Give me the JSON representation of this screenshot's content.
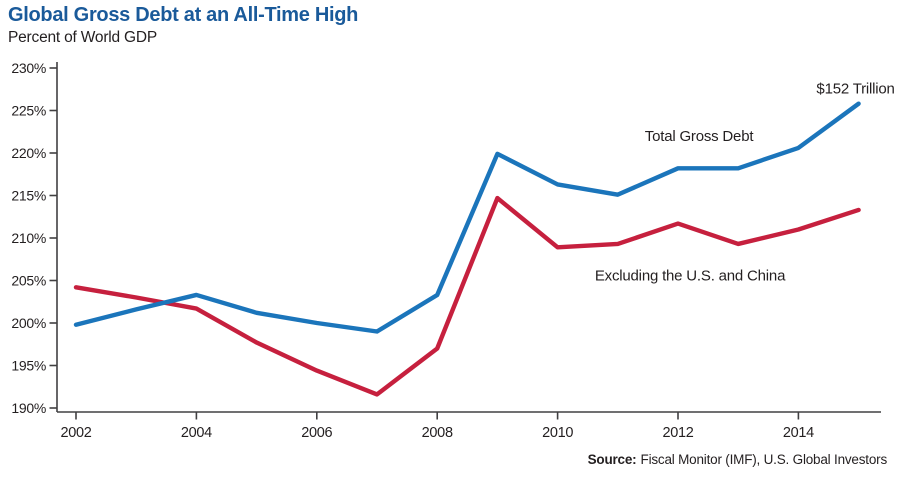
{
  "header": {
    "title": "Global Gross Debt at an All-Time High",
    "subtitle": "Percent of World GDP"
  },
  "source": {
    "label": "Source:",
    "text": "Fiscal Monitor (IMF), U.S. Global Investors"
  },
  "colors": {
    "title": "#1a5a9a",
    "total_gross_debt_line": "#1b75bb",
    "excluding_us_china_line": "#c6203e",
    "axis": "#414042",
    "text": "#231f20"
  },
  "chart_data": {
    "type": "line",
    "title": "Global Gross Debt at an All-Time High",
    "subtitle": "Percent of World GDP",
    "x": [
      2002,
      2003,
      2004,
      2005,
      2006,
      2007,
      2008,
      2009,
      2010,
      2011,
      2012,
      2013,
      2014,
      2015
    ],
    "series": [
      {
        "name": "Total Gross Debt",
        "color": "#1b75bb",
        "values": [
          199.8,
          201.6,
          203.3,
          201.2,
          200.0,
          199.0,
          203.3,
          219.9,
          216.3,
          215.1,
          218.2,
          218.2,
          220.6,
          225.8
        ]
      },
      {
        "name": "Excluding the U.S. and China",
        "color": "#c6203e",
        "values": [
          204.2,
          203.0,
          201.7,
          197.7,
          194.4,
          191.6,
          197.0,
          214.7,
          208.9,
          209.3,
          211.7,
          209.3,
          211.0,
          213.3
        ]
      }
    ],
    "xlabel": "",
    "ylabel": "Percent of World GDP",
    "ylim": [
      190,
      230
    ],
    "xlim": [
      2001.7,
      2015.4
    ],
    "yticks": [
      190,
      195,
      200,
      205,
      210,
      215,
      220,
      225,
      230
    ],
    "yticklabels": [
      "190%",
      "195%",
      "200%",
      "205%",
      "210%",
      "215%",
      "220%",
      "225%",
      "230%"
    ],
    "xticks": [
      2002,
      2004,
      2006,
      2008,
      2010,
      2012,
      2014
    ],
    "xticklabels": [
      "2002",
      "2004",
      "2006",
      "2008",
      "2010",
      "2012",
      "2014"
    ],
    "grid": false,
    "legend": "inline-annotations",
    "annotations": [
      {
        "text": "Total Gross Debt",
        "x": 2012.35,
        "y": 222.0,
        "anchor": "middle",
        "color": "#231f20"
      },
      {
        "text": "Excluding the U.S. and China",
        "x": 2012.2,
        "y": 205.6,
        "anchor": "middle",
        "color": "#231f20"
      },
      {
        "text": "$152 Trillion",
        "x": 2015.6,
        "y": 227.6,
        "anchor": "end",
        "color": "#231f20"
      }
    ]
  }
}
